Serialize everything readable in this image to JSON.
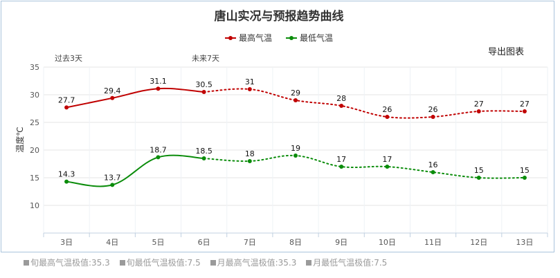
{
  "chart_data": {
    "type": "line",
    "title": "唐山实况与预报趋势曲线",
    "ylabel": "温度℃",
    "categories": [
      "3日",
      "4日",
      "5日",
      "6日",
      "7日",
      "8日",
      "9日",
      "10日",
      "11日",
      "12日",
      "13日"
    ],
    "ylim": [
      5,
      35
    ],
    "yticks": [
      10,
      15,
      20,
      25,
      30,
      35
    ],
    "past_count": 4,
    "grid": true,
    "legend_position": "top-center",
    "series": [
      {
        "name": "最高气温",
        "color": "#c00000",
        "values": [
          27.7,
          29.4,
          31.1,
          30.5,
          31,
          29,
          28,
          26,
          26,
          27,
          27
        ],
        "labels": [
          "27.7",
          "29.4",
          "31.1",
          "30.5",
          "31",
          "29",
          "28",
          "26",
          "26",
          "27",
          "27"
        ]
      },
      {
        "name": "最低气温",
        "color": "#0a8c0a",
        "values": [
          14.3,
          13.7,
          18.7,
          18.5,
          18,
          19,
          17,
          17,
          16,
          15,
          15
        ],
        "labels": [
          "14.3",
          "13.7",
          "18.7",
          "18.5",
          "18",
          "19",
          "17",
          "17",
          "16",
          "15",
          "15"
        ]
      }
    ]
  },
  "annotations": {
    "past": "过去3天",
    "future": "未来7天"
  },
  "export_label": "导出图表",
  "footer": [
    "旬最高气温极值:35.3",
    "旬最低气温极值:7.5",
    "月最高气温极值:35.3",
    "月最低气温极值:7.5"
  ]
}
